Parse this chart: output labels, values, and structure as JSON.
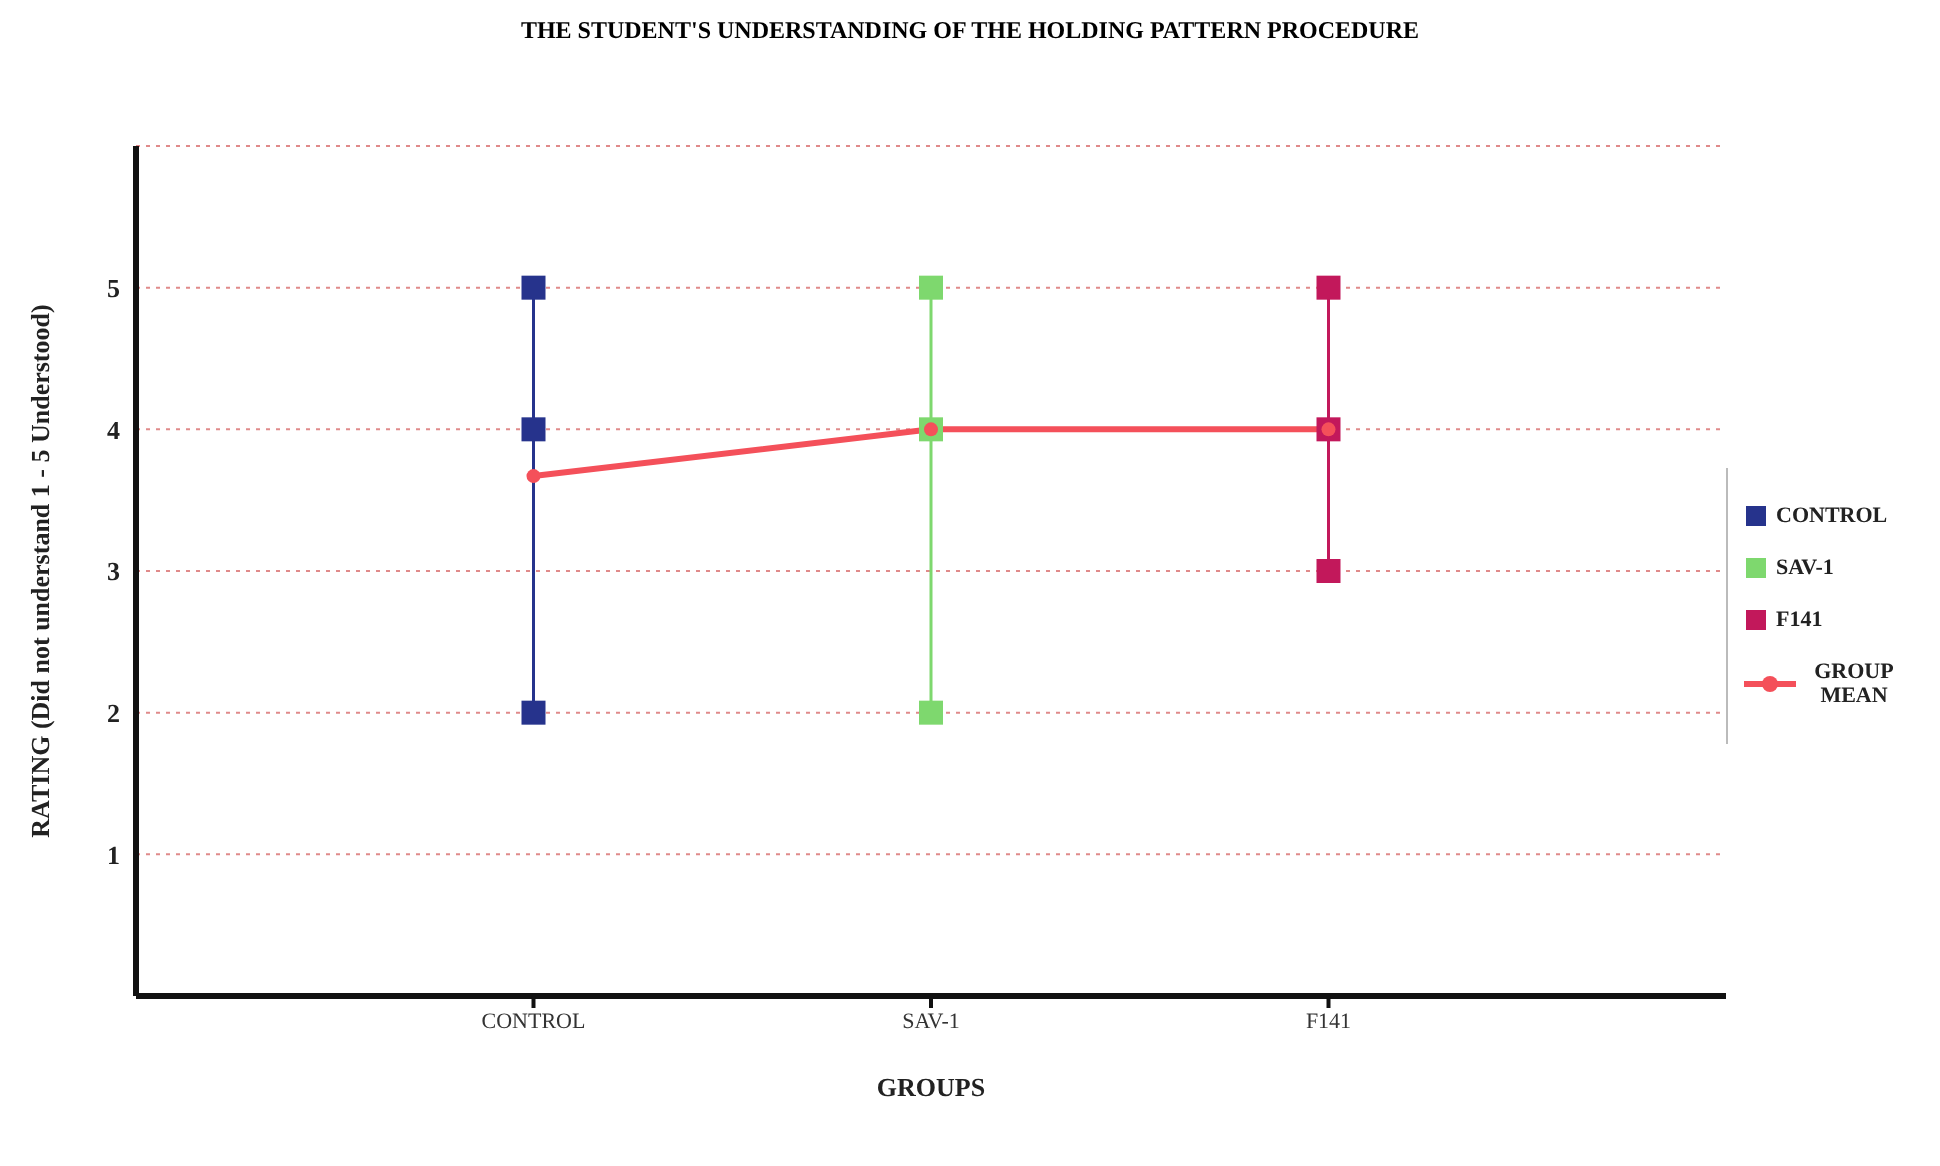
{
  "chart_data": {
    "type": "line",
    "title": "THE STUDENT'S UNDERSTANDING OF THE HOLDING PATTERN PROCEDURE",
    "xlabel": "GROUPS",
    "ylabel": "RATING (Did not understand 1 - 5 Understood)",
    "categories": [
      "CONTROL",
      "SAV-1",
      "F141"
    ],
    "series": [
      {
        "name": "CONTROL",
        "color": "#26338c",
        "marker": "square",
        "x": [
          "CONTROL",
          "CONTROL",
          "CONTROL"
        ],
        "values": [
          2,
          4,
          5
        ]
      },
      {
        "name": "SAV-1",
        "color": "#7ed86e",
        "marker": "square",
        "x": [
          "SAV-1",
          "SAV-1",
          "SAV-1"
        ],
        "values": [
          2,
          4,
          5
        ]
      },
      {
        "name": "F141",
        "color": "#c2185b",
        "marker": "square",
        "x": [
          "F141",
          "F141",
          "F141"
        ],
        "values": [
          3,
          4,
          5
        ]
      },
      {
        "name": "GROUP MEAN",
        "color": "#f4505a",
        "marker": "circle",
        "values": [
          3.67,
          4,
          4
        ]
      }
    ],
    "ylim": [
      0,
      6
    ],
    "yticks": [
      1,
      2,
      3,
      4,
      5,
      {
        "value": 6,
        "label": null
      }
    ],
    "grid": "y",
    "legend": "right"
  }
}
